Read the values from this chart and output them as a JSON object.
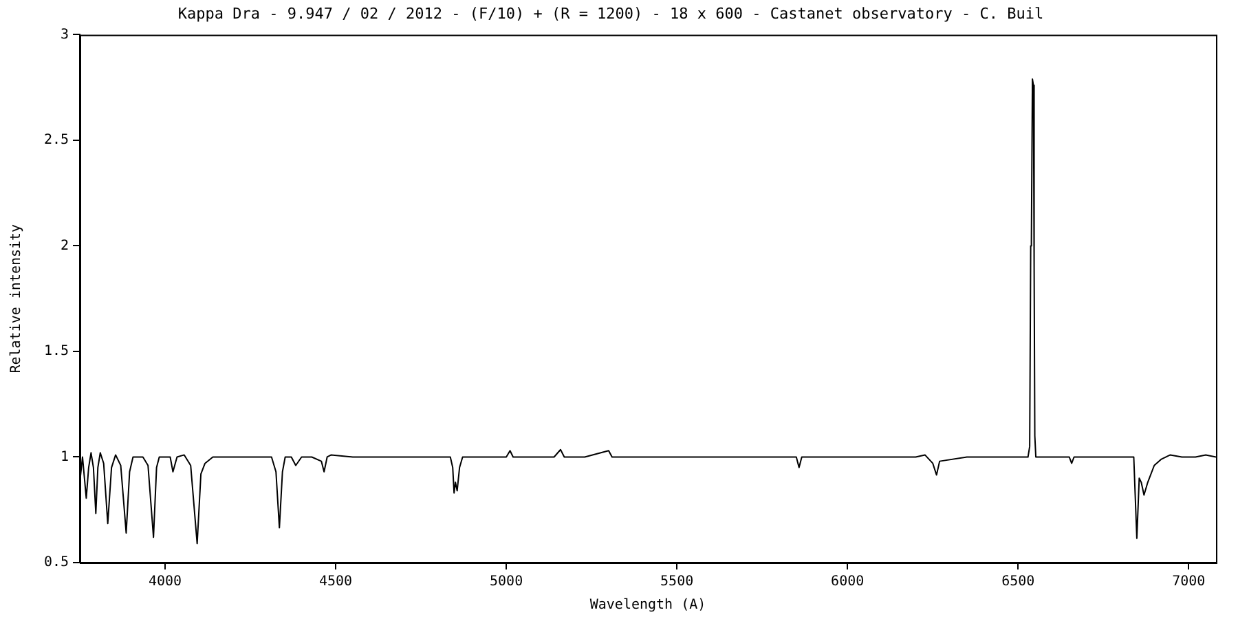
{
  "chart_data": {
    "type": "line",
    "title": "Kappa Dra - 9.947 / 02 / 2012 - (F/10) + (R = 1200) - 18 x 600 - Castanet observatory - C. Buil",
    "xlabel": "Wavelength (A)",
    "ylabel": "Relative intensity",
    "xlim": [
      3750,
      7080
    ],
    "ylim": [
      0.5,
      3
    ],
    "xticks": [
      4000,
      4500,
      5000,
      5500,
      6000,
      6500,
      7000
    ],
    "yticks": [
      0.5,
      1,
      1.5,
      2,
      2.5,
      3
    ],
    "legend": false,
    "marker": "none",
    "line_style": "solid",
    "series": [
      {
        "color": "#000000",
        "x": [
          3750,
          3758,
          3769,
          3776,
          3783,
          3790,
          3797,
          3803,
          3810,
          3820,
          3832,
          3843,
          3855,
          3870,
          3886,
          3896,
          3906,
          3920,
          3935,
          3950,
          3966,
          3975,
          3983,
          4000,
          4015,
          4023,
          4035,
          4056,
          4075,
          4094,
          4105,
          4117,
          4140,
          4164,
          4200,
          4250,
          4290,
          4312,
          4325,
          4335,
          4344,
          4352,
          4370,
          4383,
          4400,
          4430,
          4458,
          4466,
          4475,
          4487,
          4550,
          4600,
          4650,
          4700,
          4750,
          4800,
          4836,
          4843,
          4847,
          4851,
          4856,
          4863,
          4872,
          4900,
          4950,
          5000,
          5011,
          5020,
          5080,
          5140,
          5159,
          5170,
          5230,
          5300,
          5310,
          5400,
          5500,
          5600,
          5700,
          5800,
          5850,
          5858,
          5866,
          5900,
          6000,
          6100,
          6200,
          6227,
          6250,
          6261,
          6270,
          6350,
          6450,
          6529,
          6534,
          6537,
          6539,
          6542,
          6545,
          6547,
          6549,
          6552,
          6600,
          6650,
          6657,
          6664,
          6750,
          6839,
          6848,
          6855,
          6861,
          6869,
          6880,
          6899,
          6920,
          6946,
          6980,
          7020,
          7050,
          7080
        ],
        "values": [
          0.88,
          1.0,
          0.805,
          0.95,
          1.02,
          0.95,
          0.733,
          0.95,
          1.02,
          0.97,
          0.685,
          0.95,
          1.01,
          0.96,
          0.64,
          0.93,
          1.0,
          1.0,
          1.0,
          0.96,
          0.62,
          0.95,
          1.0,
          1.0,
          1.0,
          0.93,
          1.0,
          1.01,
          0.96,
          0.59,
          0.92,
          0.97,
          1.0,
          1.0,
          1.0,
          1.0,
          1.0,
          1.0,
          0.93,
          0.665,
          0.93,
          1.0,
          1.0,
          0.96,
          1.0,
          1.0,
          0.98,
          0.93,
          1.0,
          1.01,
          1.0,
          1.0,
          1.0,
          1.0,
          1.0,
          1.0,
          1.0,
          0.95,
          0.83,
          0.88,
          0.84,
          0.95,
          1.0,
          1.0,
          1.0,
          1.0,
          1.03,
          1.0,
          1.0,
          1.0,
          1.035,
          1.0,
          1.0,
          1.03,
          1.0,
          1.0,
          1.0,
          1.0,
          1.0,
          1.0,
          1.0,
          0.95,
          1.0,
          1.0,
          1.0,
          1.0,
          1.0,
          1.01,
          0.97,
          0.915,
          0.98,
          1.0,
          1.0,
          1.0,
          1.05,
          2.0,
          2.02,
          2.79,
          2.76,
          1.9,
          1.1,
          1.0,
          1.0,
          1.0,
          0.97,
          1.0,
          1.0,
          1.0,
          0.615,
          0.9,
          0.88,
          0.82,
          0.88,
          0.96,
          0.99,
          1.01,
          1.0,
          1.0,
          1.01,
          1.0
        ]
      }
    ]
  }
}
